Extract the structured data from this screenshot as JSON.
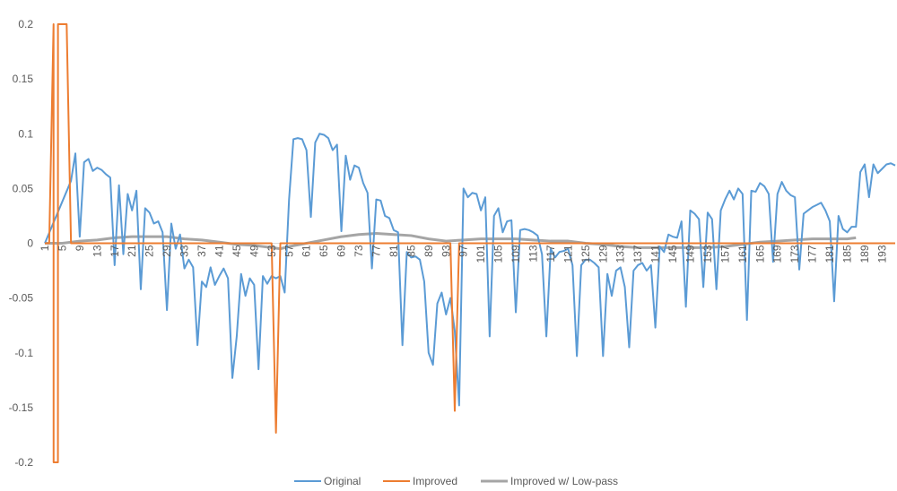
{
  "chart_data": {
    "type": "line",
    "title": "",
    "xlabel": "",
    "ylabel": "",
    "ylim": [
      -0.2,
      0.2
    ],
    "y_ticks": [
      "0.2",
      "0.15",
      "0.1",
      "0.05",
      "0",
      "-0.05",
      "-0.1",
      "-0.15",
      "-0.2"
    ],
    "x_range": [
      1,
      196
    ],
    "x_tick_labels": [
      "1",
      "5",
      "9",
      "13",
      "17",
      "21",
      "25",
      "29",
      "33",
      "37",
      "41",
      "45",
      "49",
      "53",
      "57",
      "61",
      "65",
      "69",
      "73",
      "77",
      "81",
      "85",
      "89",
      "93",
      "97",
      "101",
      "105",
      "109",
      "113",
      "117",
      "121",
      "125",
      "129",
      "133",
      "137",
      "141",
      "145",
      "149",
      "153",
      "157",
      "161",
      "165",
      "169",
      "173",
      "177",
      "181",
      "185",
      "189",
      "193"
    ],
    "grid": false,
    "legend_position": "bottom",
    "colors": {
      "Original": "#5B9BD5",
      "Improved": "#ED7D31",
      "Improved w/ Low-pass": "#A5A5A5"
    },
    "series": [
      {
        "name": "Original",
        "points": [
          [
            1,
            0
          ],
          [
            7,
            0.057
          ],
          [
            8,
            0.082
          ],
          [
            9,
            0.006
          ],
          [
            10,
            0.074
          ],
          [
            11,
            0.077
          ],
          [
            12,
            0.066
          ],
          [
            13,
            0.069
          ],
          [
            14,
            0.067
          ],
          [
            15,
            0.063
          ],
          [
            16,
            0.06
          ],
          [
            17,
            -0.02
          ],
          [
            18,
            0.053
          ],
          [
            19,
            -0.01
          ],
          [
            20,
            0.045
          ],
          [
            21,
            0.03
          ],
          [
            22,
            0.048
          ],
          [
            23,
            -0.042
          ],
          [
            24,
            0.032
          ],
          [
            25,
            0.028
          ],
          [
            26,
            0.018
          ],
          [
            27,
            0.02
          ],
          [
            28,
            0.01
          ],
          [
            29,
            -0.061
          ],
          [
            30,
            0.018
          ],
          [
            31,
            -0.005
          ],
          [
            32,
            0.008
          ],
          [
            33,
            -0.023
          ],
          [
            34,
            -0.015
          ],
          [
            35,
            -0.022
          ],
          [
            36,
            -0.093
          ],
          [
            37,
            -0.035
          ],
          [
            38,
            -0.04
          ],
          [
            39,
            -0.022
          ],
          [
            40,
            -0.038
          ],
          [
            41,
            -0.03
          ],
          [
            42,
            -0.023
          ],
          [
            43,
            -0.032
          ],
          [
            44,
            -0.123
          ],
          [
            45,
            -0.085
          ],
          [
            46,
            -0.028
          ],
          [
            47,
            -0.048
          ],
          [
            48,
            -0.032
          ],
          [
            49,
            -0.038
          ],
          [
            50,
            -0.115
          ],
          [
            51,
            -0.03
          ],
          [
            52,
            -0.037
          ],
          [
            53,
            -0.03
          ],
          [
            54,
            -0.032
          ],
          [
            55,
            -0.03
          ],
          [
            56,
            -0.045
          ],
          [
            57,
            0.04
          ],
          [
            58,
            0.095
          ],
          [
            59,
            0.096
          ],
          [
            60,
            0.095
          ],
          [
            61,
            0.085
          ],
          [
            62,
            0.024
          ],
          [
            63,
            0.092
          ],
          [
            64,
            0.1
          ],
          [
            65,
            0.099
          ],
          [
            66,
            0.096
          ],
          [
            67,
            0.085
          ],
          [
            68,
            0.09
          ],
          [
            69,
            0.011
          ],
          [
            70,
            0.08
          ],
          [
            71,
            0.058
          ],
          [
            72,
            0.071
          ],
          [
            73,
            0.069
          ],
          [
            74,
            0.055
          ],
          [
            75,
            0.046
          ],
          [
            76,
            -0.023
          ],
          [
            77,
            0.04
          ],
          [
            78,
            0.039
          ],
          [
            79,
            0.025
          ],
          [
            80,
            0.023
          ],
          [
            81,
            0.012
          ],
          [
            82,
            0.01
          ],
          [
            83,
            -0.093
          ],
          [
            84,
            -0.008
          ],
          [
            85,
            -0.013
          ],
          [
            86,
            -0.012
          ],
          [
            87,
            -0.015
          ],
          [
            88,
            -0.035
          ],
          [
            89,
            -0.1
          ],
          [
            90,
            -0.111
          ],
          [
            91,
            -0.055
          ],
          [
            92,
            -0.045
          ],
          [
            93,
            -0.065
          ],
          [
            94,
            -0.05
          ],
          [
            95,
            -0.08
          ],
          [
            96,
            -0.148
          ],
          [
            97,
            0.05
          ],
          [
            98,
            0.042
          ],
          [
            99,
            0.046
          ],
          [
            100,
            0.045
          ],
          [
            101,
            0.03
          ],
          [
            102,
            0.042
          ],
          [
            103,
            -0.085
          ],
          [
            104,
            0.025
          ],
          [
            105,
            0.032
          ],
          [
            106,
            0.01
          ],
          [
            107,
            0.02
          ],
          [
            108,
            0.021
          ],
          [
            109,
            -0.063
          ],
          [
            110,
            0.012
          ],
          [
            111,
            0.013
          ],
          [
            112,
            0.012
          ],
          [
            113,
            0.01
          ],
          [
            114,
            0.007
          ],
          [
            115,
            -0.01
          ],
          [
            116,
            -0.085
          ],
          [
            117,
            -0.005
          ],
          [
            118,
            -0.013
          ],
          [
            119,
            -0.008
          ],
          [
            120,
            -0.007
          ],
          [
            121,
            -0.005
          ],
          [
            122,
            -0.02
          ],
          [
            123,
            -0.103
          ],
          [
            124,
            -0.02
          ],
          [
            125,
            -0.015
          ],
          [
            126,
            -0.015
          ],
          [
            127,
            -0.018
          ],
          [
            128,
            -0.022
          ],
          [
            129,
            -0.103
          ],
          [
            130,
            -0.028
          ],
          [
            131,
            -0.048
          ],
          [
            132,
            -0.025
          ],
          [
            133,
            -0.022
          ],
          [
            134,
            -0.04
          ],
          [
            135,
            -0.095
          ],
          [
            136,
            -0.025
          ],
          [
            137,
            -0.02
          ],
          [
            138,
            -0.018
          ],
          [
            139,
            -0.025
          ],
          [
            140,
            -0.02
          ],
          [
            141,
            -0.077
          ],
          [
            142,
            -0.003
          ],
          [
            143,
            -0.008
          ],
          [
            144,
            0.008
          ],
          [
            145,
            0.006
          ],
          [
            146,
            0.005
          ],
          [
            147,
            0.02
          ],
          [
            148,
            -0.058
          ],
          [
            149,
            0.03
          ],
          [
            150,
            0.027
          ],
          [
            151,
            0.022
          ],
          [
            152,
            -0.04
          ],
          [
            153,
            0.028
          ],
          [
            154,
            0.022
          ],
          [
            155,
            -0.042
          ],
          [
            156,
            0.03
          ],
          [
            157,
            0.04
          ],
          [
            158,
            0.048
          ],
          [
            159,
            0.04
          ],
          [
            160,
            0.05
          ],
          [
            161,
            0.045
          ],
          [
            162,
            -0.07
          ],
          [
            163,
            0.048
          ],
          [
            164,
            0.047
          ],
          [
            165,
            0.055
          ],
          [
            166,
            0.052
          ],
          [
            167,
            0.045
          ],
          [
            168,
            -0.017
          ],
          [
            169,
            0.045
          ],
          [
            170,
            0.056
          ],
          [
            171,
            0.048
          ],
          [
            172,
            0.044
          ],
          [
            173,
            0.042
          ],
          [
            174,
            -0.024
          ],
          [
            175,
            0.027
          ],
          [
            176,
            0.03
          ],
          [
            177,
            0.033
          ],
          [
            178,
            0.035
          ],
          [
            179,
            0.037
          ],
          [
            180,
            0.03
          ],
          [
            181,
            0.02
          ],
          [
            182,
            -0.053
          ],
          [
            183,
            0.025
          ],
          [
            184,
            0.013
          ],
          [
            185,
            0.01
          ],
          [
            186,
            0.015
          ],
          [
            187,
            0.015
          ],
          [
            188,
            0.065
          ],
          [
            189,
            0.072
          ],
          [
            190,
            0.042
          ],
          [
            191,
            0.072
          ],
          [
            192,
            0.064
          ],
          [
            193,
            0.068
          ],
          [
            194,
            0.072
          ],
          [
            195,
            0.073
          ],
          [
            196,
            0.071
          ]
        ]
      },
      {
        "name": "Improved",
        "points": [
          [
            1,
            0
          ],
          [
            2,
            0
          ],
          [
            3,
            0.2
          ],
          [
            3.01,
            -0.2
          ],
          [
            4,
            -0.2
          ],
          [
            4.01,
            0.2
          ],
          [
            6,
            0.2
          ],
          [
            7,
            0
          ],
          [
            53,
            0
          ],
          [
            54,
            -0.173
          ],
          [
            55,
            0
          ],
          [
            94,
            0
          ],
          [
            95,
            -0.153
          ],
          [
            96,
            0
          ],
          [
            196,
            0
          ]
        ]
      },
      {
        "name": "Improved w/ Low-pass",
        "points": [
          [
            1,
            0
          ],
          [
            5,
            0
          ],
          [
            9,
            0.002
          ],
          [
            13,
            0.003
          ],
          [
            17,
            0.005
          ],
          [
            21,
            0.006
          ],
          [
            25,
            0.006
          ],
          [
            29,
            0.006
          ],
          [
            33,
            0.004
          ],
          [
            37,
            0.003
          ],
          [
            41,
            0.001
          ],
          [
            45,
            -0.001
          ],
          [
            49,
            -0.002
          ],
          [
            53,
            -0.004
          ],
          [
            55,
            -0.005
          ],
          [
            57,
            -0.003
          ],
          [
            61,
            0
          ],
          [
            65,
            0.003
          ],
          [
            69,
            0.006
          ],
          [
            73,
            0.008
          ],
          [
            77,
            0.009
          ],
          [
            81,
            0.008
          ],
          [
            85,
            0.007
          ],
          [
            89,
            0.004
          ],
          [
            93,
            0.002
          ],
          [
            97,
            0.003
          ],
          [
            101,
            0.004
          ],
          [
            105,
            0.004
          ],
          [
            109,
            0.004
          ],
          [
            113,
            0.003
          ],
          [
            117,
            0.002
          ],
          [
            121,
            0.002
          ],
          [
            125,
            0
          ],
          [
            129,
            -0.001
          ],
          [
            133,
            -0.003
          ],
          [
            137,
            -0.004
          ],
          [
            141,
            -0.004
          ],
          [
            145,
            -0.004
          ],
          [
            149,
            -0.004
          ],
          [
            153,
            -0.004
          ],
          [
            157,
            -0.003
          ],
          [
            161,
            -0.001
          ],
          [
            165,
            0.001
          ],
          [
            169,
            0.002
          ],
          [
            173,
            0.003
          ],
          [
            177,
            0.004
          ],
          [
            181,
            0.004
          ],
          [
            185,
            0.004
          ],
          [
            187,
            0.005
          ]
        ]
      }
    ]
  }
}
